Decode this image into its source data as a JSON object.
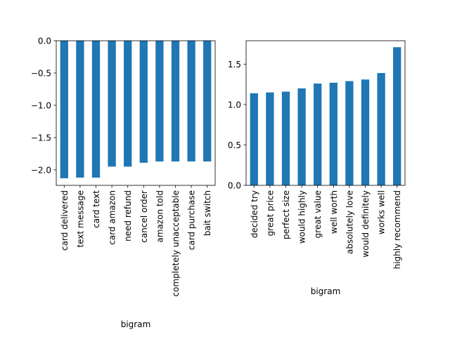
{
  "chart_data": [
    {
      "type": "bar",
      "xlabel": "bigram",
      "ylabel": "",
      "ylim": [
        -2.24,
        0.0
      ],
      "yticks": [
        "−2.0",
        "−1.5",
        "−1.0",
        "−0.5",
        "0.0"
      ],
      "ytick_values": [
        -2.0,
        -1.5,
        -1.0,
        -0.5,
        0.0
      ],
      "categories": [
        "card delivered",
        "text message",
        "card text",
        "card amazon",
        "need refund",
        "cancel order",
        "amazon told",
        "completely unacceptable",
        "card purchase",
        "bait switch"
      ],
      "values": [
        -2.13,
        -2.12,
        -2.12,
        -1.95,
        -1.95,
        -1.89,
        -1.87,
        -1.87,
        -1.87,
        -1.87
      ],
      "bar_color": "#1f77b4"
    },
    {
      "type": "bar",
      "xlabel": "bigram",
      "ylabel": "",
      "ylim": [
        0.0,
        1.79
      ],
      "yticks": [
        "0.0",
        "0.5",
        "1.0",
        "1.5"
      ],
      "ytick_values": [
        0.0,
        0.5,
        1.0,
        1.5
      ],
      "categories": [
        "decided try",
        "great price",
        "perfect size",
        "would highly",
        "great value",
        "well worth",
        "absolutely love",
        "would definitely",
        "works well",
        "highly recommend"
      ],
      "values": [
        1.14,
        1.15,
        1.16,
        1.2,
        1.26,
        1.27,
        1.29,
        1.31,
        1.39,
        1.71
      ],
      "bar_color": "#1f77b4"
    }
  ]
}
